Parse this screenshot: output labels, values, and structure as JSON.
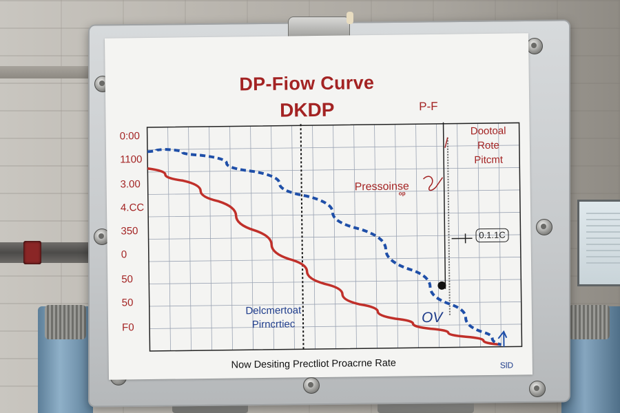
{
  "chart_data": {
    "type": "line",
    "title": "DP-Fiow Curve",
    "subtitle": "DKDP",
    "xlabel": "Now Desiting Prectliot Proacrne Rate",
    "y_ticks": [
      "0:00",
      "1100",
      "3.00",
      "4.CC",
      "350",
      "0",
      "50",
      "50",
      "F0"
    ],
    "series": [
      {
        "name": "",
        "color": "#c0302a",
        "style": "solid",
        "x": [
          0,
          0.1,
          0.2,
          0.3,
          0.4,
          0.5,
          0.6,
          0.7,
          0.8,
          0.9,
          1.0
        ],
        "y": [
          0.86,
          0.8,
          0.7,
          0.56,
          0.42,
          0.3,
          0.2,
          0.13,
          0.08,
          0.04,
          0.0
        ]
      },
      {
        "name": "",
        "color": "#1f4fa8",
        "style": "dashed",
        "x": [
          0,
          0.05,
          0.15,
          0.3,
          0.45,
          0.6,
          0.75,
          0.85,
          0.95,
          1.0
        ],
        "y": [
          0.94,
          0.95,
          0.92,
          0.84,
          0.72,
          0.56,
          0.36,
          0.2,
          0.06,
          0.0
        ]
      }
    ],
    "grid": true
  },
  "annotations": {
    "pf": "P-F",
    "right_lines": [
      "Dootoal",
      "Rote",
      "Pitcmt"
    ],
    "pressure": "Pressoinse",
    "op": "op",
    "box_value": "0.1.1C",
    "ov": "OV",
    "bottom_left_lines": [
      "Delcmertoat",
      "Pirncrtiec"
    ],
    "corner": "SlD"
  },
  "colors": {
    "red": "#a32323",
    "blue": "#1f4fa8",
    "grid": "#9aa3b3"
  }
}
